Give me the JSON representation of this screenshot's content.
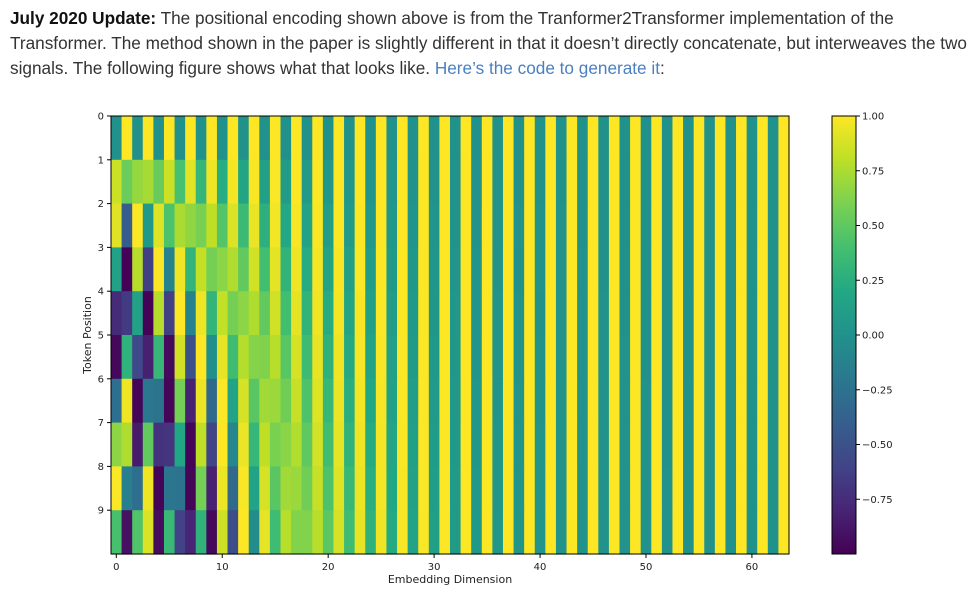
{
  "intro": {
    "bold_lead": "July 2020 Update:",
    "text": " The positional encoding shown above is from the Tranformer2Transformer implementation of the Transformer. The method shown in the paper is slightly different in that it doesn’t directly concatenate, but interweaves the two signals. The following figure shows what that looks like. ",
    "link_text": "Here’s the code to generate it",
    "trailing": ":"
  },
  "chart_data": {
    "type": "heatmap",
    "title": "",
    "xlabel": "Embedding Dimension",
    "ylabel": "Token Position",
    "rows": 10,
    "cols": 64,
    "d_model": 64,
    "encoding": "interleaved sin (even dims) / cos (odd dims)",
    "x_ticks": [
      0,
      10,
      20,
      30,
      40,
      50,
      60
    ],
    "y_ticks": [
      0,
      1,
      2,
      3,
      4,
      5,
      6,
      7,
      8,
      9
    ],
    "colorbar": {
      "vmin": -1.0,
      "vmax": 1.0,
      "ticks": [
        1.0,
        0.75,
        0.5,
        0.25,
        0.0,
        -0.25,
        -0.5,
        -0.75
      ],
      "tick_labels": [
        "1.00",
        "0.75",
        "0.50",
        "0.25",
        "0.00",
        "−0.25",
        "−0.50",
        "−0.75"
      ],
      "colormap": "viridis"
    }
  }
}
